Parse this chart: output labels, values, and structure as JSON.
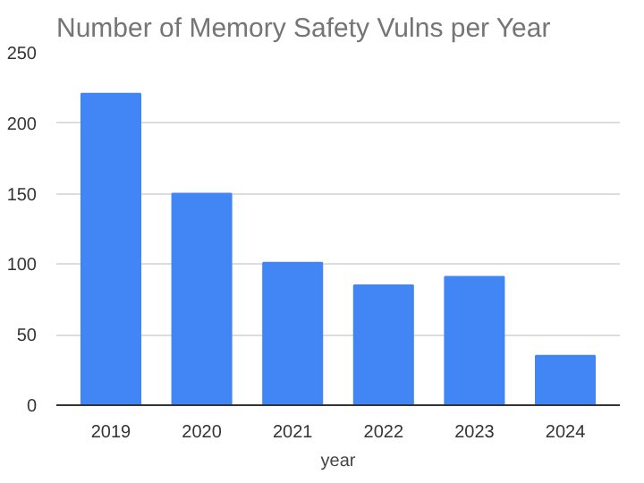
{
  "chart_data": {
    "type": "bar",
    "title": "Number of Memory Safety Vulns per Year",
    "xlabel": "year",
    "categories": [
      "2019",
      "2020",
      "2021",
      "2022",
      "2023",
      "2024"
    ],
    "values": [
      221,
      150,
      101,
      85,
      91,
      35
    ],
    "color": "#4285f4",
    "ylim": [
      0,
      250
    ],
    "yticks": [
      0,
      50,
      100,
      150,
      200,
      250
    ],
    "grid": "y"
  }
}
